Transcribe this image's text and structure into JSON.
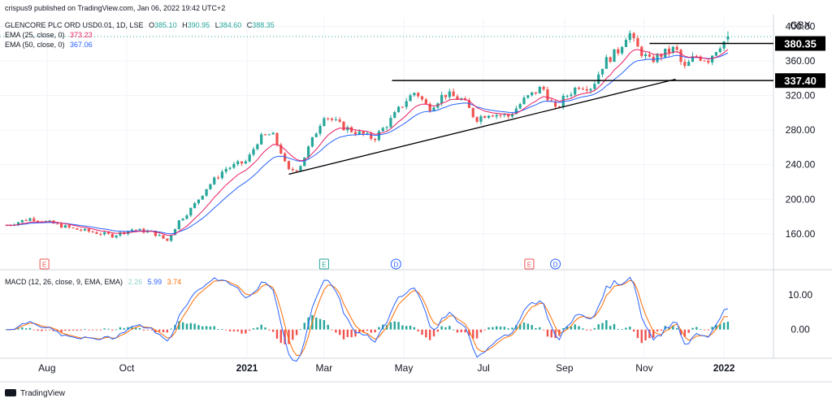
{
  "header": {
    "published_by": "crispus9 published on TradingView.com, Jan 06, 2022 19:42 UTC+2",
    "symbol": "GLENCORE PLC ORD USD0.01, 1D, LSE",
    "ohlc": [
      {
        "label": "O",
        "value": "385.10"
      },
      {
        "label": "H",
        "value": "390.95"
      },
      {
        "label": "L",
        "value": "384.60"
      },
      {
        "label": "C",
        "value": "388.35"
      }
    ],
    "ema25": {
      "label": "EMA (25, close, 0)",
      "value": "373.23"
    },
    "ema50": {
      "label": "EMA (50, close, 0)",
      "value": "367.06"
    },
    "macd": {
      "label": "MACD (12, 26, close, 9, EMA, EMA)",
      "values": [
        "2.26",
        "5.99",
        "3.74"
      ]
    }
  },
  "footer": {
    "brand": "TradingView"
  },
  "colors": {
    "up": "#26a69a",
    "down": "#ef5350",
    "ema25": "#e91e63",
    "ema50": "#2962ff",
    "macd_line": "#2962ff",
    "signal_line": "#ff6d00",
    "hist_up": "#26a69a",
    "hist_down": "#ef5350",
    "trendline": "#000000",
    "grid": "#f0f3fa",
    "text": "#131722",
    "event_e": "#ef5350",
    "event_e2": "#26a69a",
    "event_d": "#2962ff"
  },
  "chart_data": [
    {
      "type": "candlestick",
      "currency": "GBX",
      "x_tick_labels": [
        "Aug",
        "Oct",
        "2021",
        "Mar",
        "May",
        "Jul",
        "Sep",
        "Nov",
        "2022"
      ],
      "y_ticks": [
        "400.00",
        "360.00",
        "320.00",
        "280.00",
        "240.00",
        "200.00",
        "160.00"
      ],
      "y_tick_values": [
        400,
        360,
        320,
        280,
        240,
        200,
        160
      ],
      "ylim": [
        125,
        410
      ],
      "price_levels": [
        {
          "label": "380.35",
          "value": 380.35
        },
        {
          "label": "337.40",
          "value": 337.4
        }
      ],
      "last_price": 388.35,
      "approx_close_path": [
        {
          "date": "2020-07-01",
          "close": 170
        },
        {
          "date": "2020-07-20",
          "close": 178
        },
        {
          "date": "2020-08-05",
          "close": 172
        },
        {
          "date": "2020-08-20",
          "close": 166
        },
        {
          "date": "2020-09-05",
          "close": 162
        },
        {
          "date": "2020-09-20",
          "close": 158
        },
        {
          "date": "2020-10-05",
          "close": 165
        },
        {
          "date": "2020-10-20",
          "close": 162
        },
        {
          "date": "2020-11-01",
          "close": 152
        },
        {
          "date": "2020-11-10",
          "close": 175
        },
        {
          "date": "2020-11-20",
          "close": 190
        },
        {
          "date": "2020-12-01",
          "close": 213
        },
        {
          "date": "2020-12-15",
          "close": 235
        },
        {
          "date": "2021-01-01",
          "close": 244
        },
        {
          "date": "2021-01-10",
          "close": 270
        },
        {
          "date": "2021-01-20",
          "close": 276
        },
        {
          "date": "2021-01-27",
          "close": 255
        },
        {
          "date": "2021-02-01",
          "close": 232
        },
        {
          "date": "2021-02-10",
          "close": 237
        },
        {
          "date": "2021-02-22",
          "close": 275
        },
        {
          "date": "2021-03-01",
          "close": 298
        },
        {
          "date": "2021-03-15",
          "close": 284
        },
        {
          "date": "2021-03-25",
          "close": 278
        },
        {
          "date": "2021-04-08",
          "close": 270
        },
        {
          "date": "2021-04-20",
          "close": 290
        },
        {
          "date": "2021-05-03",
          "close": 315
        },
        {
          "date": "2021-05-10",
          "close": 325
        },
        {
          "date": "2021-05-20",
          "close": 305
        },
        {
          "date": "2021-06-01",
          "close": 322
        },
        {
          "date": "2021-06-15",
          "close": 315
        },
        {
          "date": "2021-06-25",
          "close": 293
        },
        {
          "date": "2021-07-05",
          "close": 300
        },
        {
          "date": "2021-07-20",
          "close": 296
        },
        {
          "date": "2021-08-01",
          "close": 315
        },
        {
          "date": "2021-08-15",
          "close": 330
        },
        {
          "date": "2021-08-25",
          "close": 303
        },
        {
          "date": "2021-09-01",
          "close": 318
        },
        {
          "date": "2021-09-12",
          "close": 332
        },
        {
          "date": "2021-09-22",
          "close": 330
        },
        {
          "date": "2021-10-01",
          "close": 358
        },
        {
          "date": "2021-10-12",
          "close": 372
        },
        {
          "date": "2021-10-20",
          "close": 395
        },
        {
          "date": "2021-10-25",
          "close": 378
        },
        {
          "date": "2021-11-05",
          "close": 360
        },
        {
          "date": "2021-11-15",
          "close": 368
        },
        {
          "date": "2021-11-25",
          "close": 375
        },
        {
          "date": "2021-12-01",
          "close": 350
        },
        {
          "date": "2021-12-10",
          "close": 366
        },
        {
          "date": "2021-12-20",
          "close": 362
        },
        {
          "date": "2021-12-28",
          "close": 378
        },
        {
          "date": "2022-01-06",
          "close": 388.35
        }
      ],
      "event_markers": [
        {
          "label": "E",
          "date": "2020-07-30"
        },
        {
          "label": "E",
          "date": "2021-03-01"
        },
        {
          "label": "D",
          "date": "2021-04-25"
        },
        {
          "label": "E",
          "date": "2021-08-05"
        },
        {
          "label": "D",
          "date": "2021-08-25"
        }
      ]
    },
    {
      "type": "line",
      "title": "MACD (12, 26, close, 9, EMA, EMA)",
      "y_ticks": [
        "10.00",
        "0.00"
      ],
      "y_tick_values": [
        10,
        0
      ],
      "ylim": [
        -8,
        16
      ],
      "last_values": {
        "histogram": 2.26,
        "macd": 5.99,
        "signal": 3.74
      }
    }
  ]
}
